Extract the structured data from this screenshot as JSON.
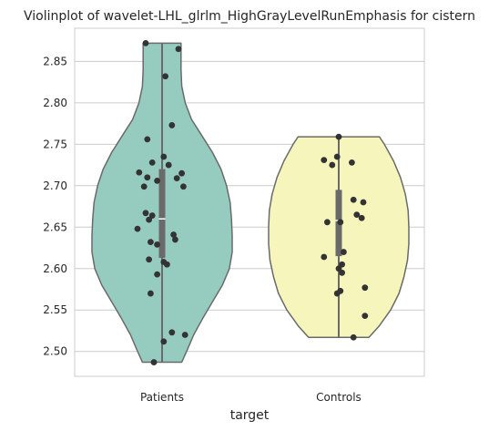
{
  "chart_data": {
    "type": "violin",
    "title": "Violinplot of wavelet-LHL_glrlm_HighGrayLevelRunEmphasis for cistern",
    "xlabel": "target",
    "ylabel": "",
    "categories": [
      "Patients",
      "Controls"
    ],
    "ylim": [
      2.47,
      2.89
    ],
    "yticks": [
      2.5,
      2.55,
      2.6,
      2.65,
      2.7,
      2.75,
      2.8,
      2.85
    ],
    "ytick_labels": [
      "2.50",
      "2.55",
      "2.60",
      "2.65",
      "2.70",
      "2.75",
      "2.80",
      "2.85"
    ],
    "grid": "horizontal",
    "colors": {
      "Patients": "#96cbc0",
      "Controls": "#f6f6bc",
      "outline": "#6a6a6a",
      "points": "#333333",
      "grid": "#cccccc"
    },
    "series": [
      {
        "category": "Patients",
        "min": 2.487,
        "q1": 2.613,
        "median": 2.66,
        "q3": 2.72,
        "max": 2.872,
        "violin_profile": [
          [
            2.487,
            0.28
          ],
          [
            2.5,
            0.35
          ],
          [
            2.52,
            0.45
          ],
          [
            2.54,
            0.58
          ],
          [
            2.56,
            0.72
          ],
          [
            2.58,
            0.86
          ],
          [
            2.6,
            0.96
          ],
          [
            2.62,
            1.0
          ],
          [
            2.64,
            1.0
          ],
          [
            2.66,
            0.99
          ],
          [
            2.68,
            0.97
          ],
          [
            2.7,
            0.92
          ],
          [
            2.72,
            0.84
          ],
          [
            2.74,
            0.72
          ],
          [
            2.76,
            0.57
          ],
          [
            2.78,
            0.42
          ],
          [
            2.8,
            0.33
          ],
          [
            2.82,
            0.28
          ],
          [
            2.84,
            0.27
          ],
          [
            2.86,
            0.27
          ],
          [
            2.872,
            0.27
          ]
        ],
        "points": [
          [
            -0.1,
            2.872
          ],
          [
            0.1,
            2.865
          ],
          [
            0.02,
            2.832
          ],
          [
            0.06,
            2.773
          ],
          [
            -0.09,
            2.756
          ],
          [
            0.01,
            2.735
          ],
          [
            -0.06,
            2.728
          ],
          [
            0.04,
            2.725
          ],
          [
            -0.14,
            2.716
          ],
          [
            0.12,
            2.715
          ],
          [
            -0.09,
            2.71
          ],
          [
            0.09,
            2.709
          ],
          [
            -0.03,
            2.706
          ],
          [
            -0.11,
            2.699
          ],
          [
            0.13,
            2.699
          ],
          [
            -0.1,
            2.667
          ],
          [
            -0.06,
            2.664
          ],
          [
            -0.08,
            2.659
          ],
          [
            0.07,
            2.641
          ],
          [
            -0.15,
            2.648
          ],
          [
            0.08,
            2.635
          ],
          [
            -0.07,
            2.632
          ],
          [
            -0.03,
            2.629
          ],
          [
            -0.08,
            2.611
          ],
          [
            0.01,
            2.608
          ],
          [
            0.03,
            2.605
          ],
          [
            -0.03,
            2.593
          ],
          [
            -0.07,
            2.57
          ],
          [
            0.06,
            2.523
          ],
          [
            0.14,
            2.52
          ],
          [
            0.01,
            2.512
          ],
          [
            -0.05,
            2.487
          ]
        ]
      },
      {
        "category": "Controls",
        "min": 2.517,
        "q1": 2.615,
        "median": 2.658,
        "q3": 2.695,
        "max": 2.759,
        "violin_profile": [
          [
            2.517,
            0.43
          ],
          [
            2.53,
            0.57
          ],
          [
            2.55,
            0.74
          ],
          [
            2.57,
            0.86
          ],
          [
            2.59,
            0.93
          ],
          [
            2.61,
            0.98
          ],
          [
            2.63,
            1.0
          ],
          [
            2.65,
            1.0
          ],
          [
            2.67,
            0.99
          ],
          [
            2.69,
            0.95
          ],
          [
            2.71,
            0.88
          ],
          [
            2.73,
            0.78
          ],
          [
            2.75,
            0.65
          ],
          [
            2.759,
            0.58
          ]
        ],
        "points": [
          [
            0.0,
            2.759
          ],
          [
            -0.01,
            2.735
          ],
          [
            -0.09,
            2.731
          ],
          [
            0.08,
            2.728
          ],
          [
            -0.04,
            2.725
          ],
          [
            0.09,
            2.683
          ],
          [
            0.15,
            2.68
          ],
          [
            0.11,
            2.665
          ],
          [
            0.14,
            2.661
          ],
          [
            -0.07,
            2.656
          ],
          [
            0.01,
            2.656
          ],
          [
            0.03,
            2.62
          ],
          [
            -0.09,
            2.614
          ],
          [
            0.02,
            2.605
          ],
          [
            0.0,
            2.6
          ],
          [
            0.02,
            2.595
          ],
          [
            0.16,
            2.577
          ],
          [
            0.01,
            2.573
          ],
          [
            -0.01,
            2.57
          ],
          [
            0.16,
            2.543
          ],
          [
            0.09,
            2.517
          ]
        ]
      }
    ]
  }
}
